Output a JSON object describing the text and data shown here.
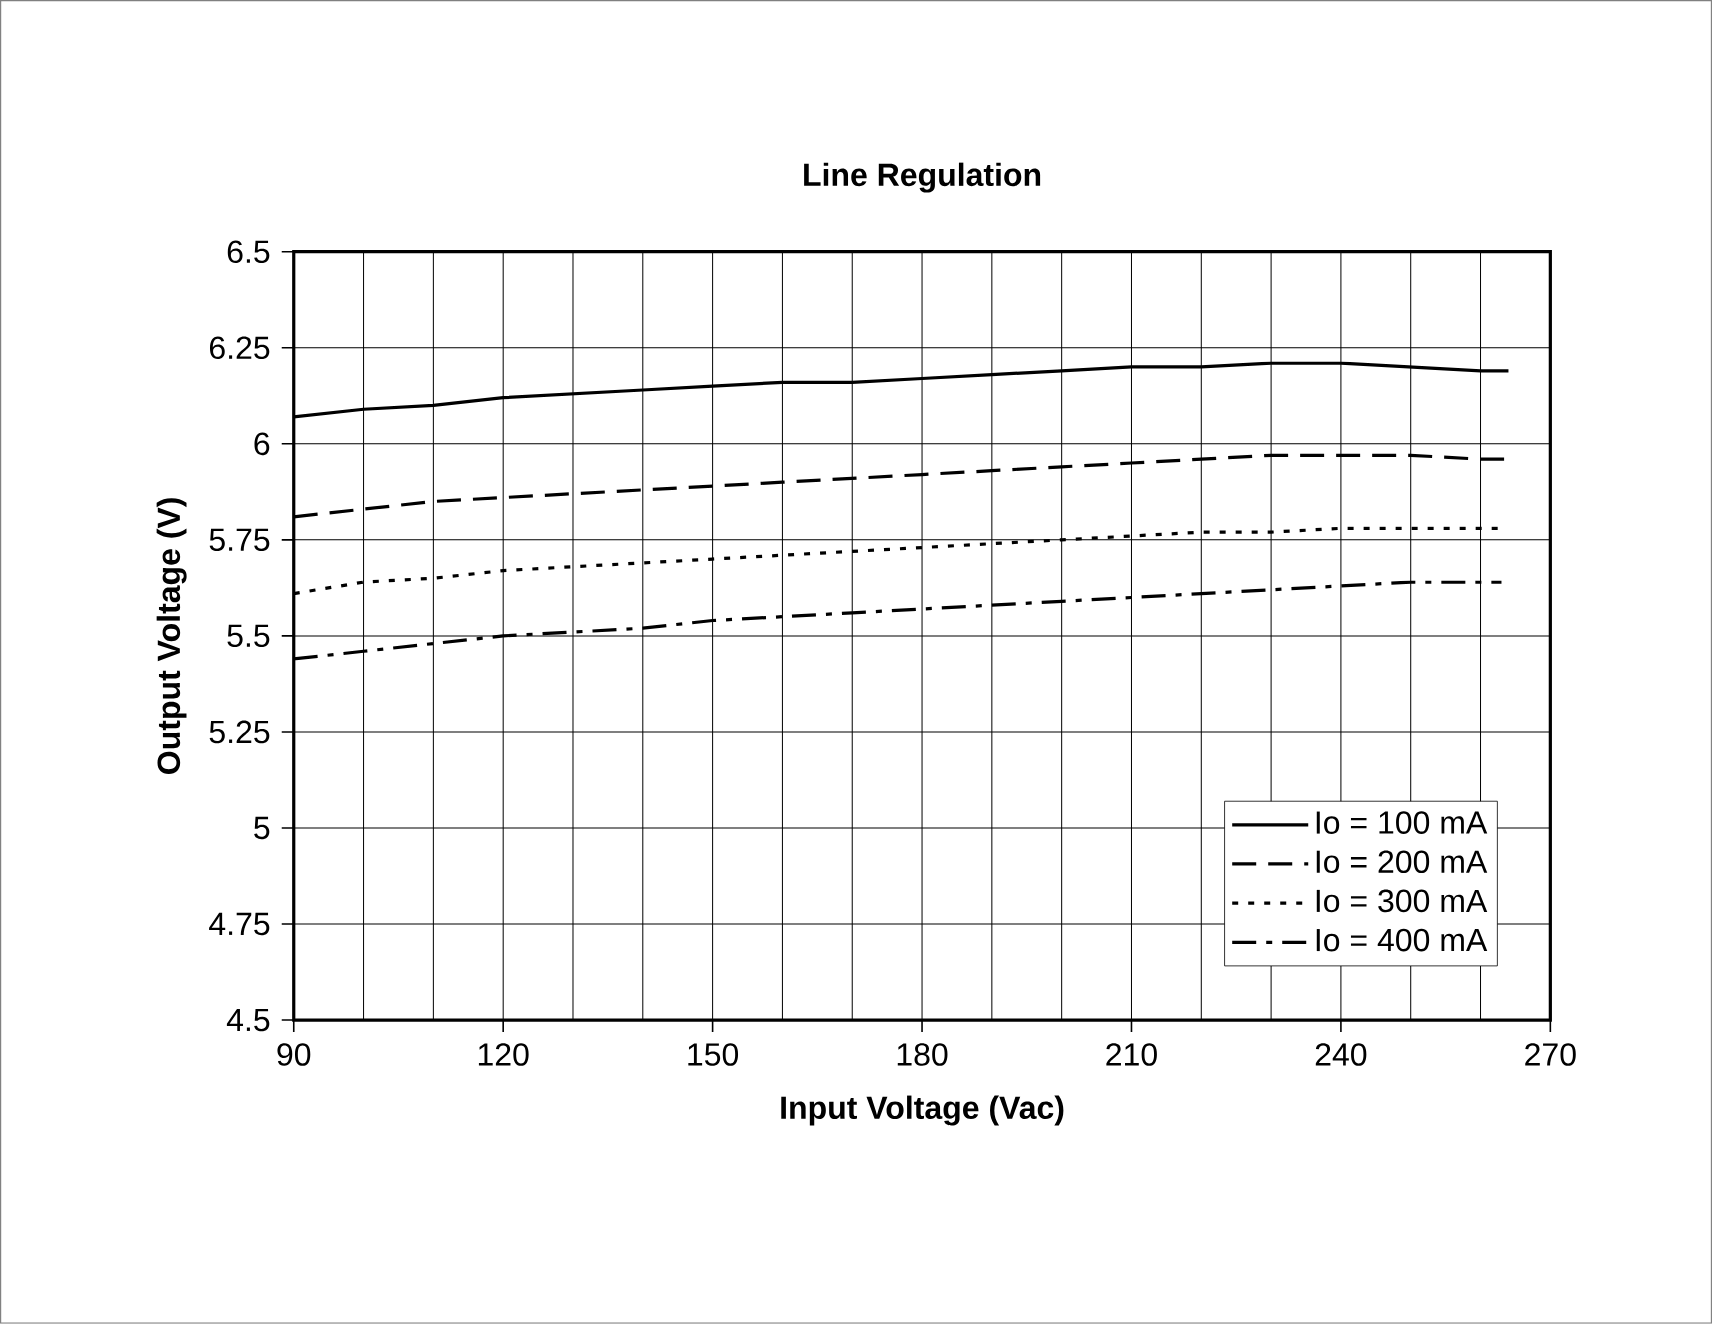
{
  "chart_data": {
    "type": "line",
    "title": "Line Regulation",
    "xlabel": "Input Voltage (Vac)",
    "ylabel": "Output Voltage (V)",
    "xlim": [
      90,
      270
    ],
    "xticks": [
      90,
      120,
      150,
      180,
      210,
      240,
      270
    ],
    "ylim": [
      4.5,
      6.5
    ],
    "yticks": [
      4.5,
      4.75,
      5,
      5.25,
      5.5,
      5.75,
      6,
      6.25,
      6.5
    ],
    "grid": true,
    "legend": "bottom right",
    "marker": "none",
    "x": [
      90,
      100,
      110,
      120,
      130,
      140,
      150,
      160,
      170,
      180,
      190,
      200,
      210,
      220,
      230,
      240,
      250,
      260,
      264
    ],
    "series": [
      {
        "name": "Io = 100 mA",
        "color": "#000000",
        "line_style": "solid",
        "values": [
          6.07,
          6.09,
          6.1,
          6.12,
          6.13,
          6.14,
          6.15,
          6.16,
          6.16,
          6.17,
          6.18,
          6.19,
          6.2,
          6.2,
          6.21,
          6.21,
          6.2,
          6.19,
          6.19
        ]
      },
      {
        "name": "Io = 200 mA",
        "color": "#000000",
        "line_style": "dashed",
        "values": [
          5.81,
          5.83,
          5.85,
          5.86,
          5.87,
          5.88,
          5.89,
          5.9,
          5.91,
          5.92,
          5.93,
          5.94,
          5.95,
          5.96,
          5.97,
          5.97,
          5.97,
          5.96,
          5.96
        ]
      },
      {
        "name": "Io = 300 mA",
        "color": "#000000",
        "line_style": "dotted",
        "x": [
          90,
          100,
          110,
          120,
          130,
          140,
          150,
          160,
          170,
          180,
          190,
          200,
          210,
          220,
          230,
          240,
          250,
          260,
          263
        ],
        "values": [
          5.61,
          5.64,
          5.65,
          5.67,
          5.68,
          5.69,
          5.7,
          5.71,
          5.72,
          5.73,
          5.74,
          5.75,
          5.76,
          5.77,
          5.77,
          5.78,
          5.78,
          5.78,
          5.78
        ]
      },
      {
        "name": "Io = 400 mA",
        "color": "#000000",
        "line_style": "dash-dot",
        "x": [
          90,
          100,
          110,
          120,
          130,
          140,
          150,
          160,
          170,
          180,
          190,
          200,
          210,
          220,
          230,
          240,
          250,
          260,
          263
        ],
        "values": [
          5.44,
          5.46,
          5.48,
          5.5,
          5.51,
          5.52,
          5.54,
          5.55,
          5.56,
          5.57,
          5.58,
          5.59,
          5.6,
          5.61,
          5.62,
          5.63,
          5.64,
          5.64,
          5.64
        ]
      }
    ]
  }
}
